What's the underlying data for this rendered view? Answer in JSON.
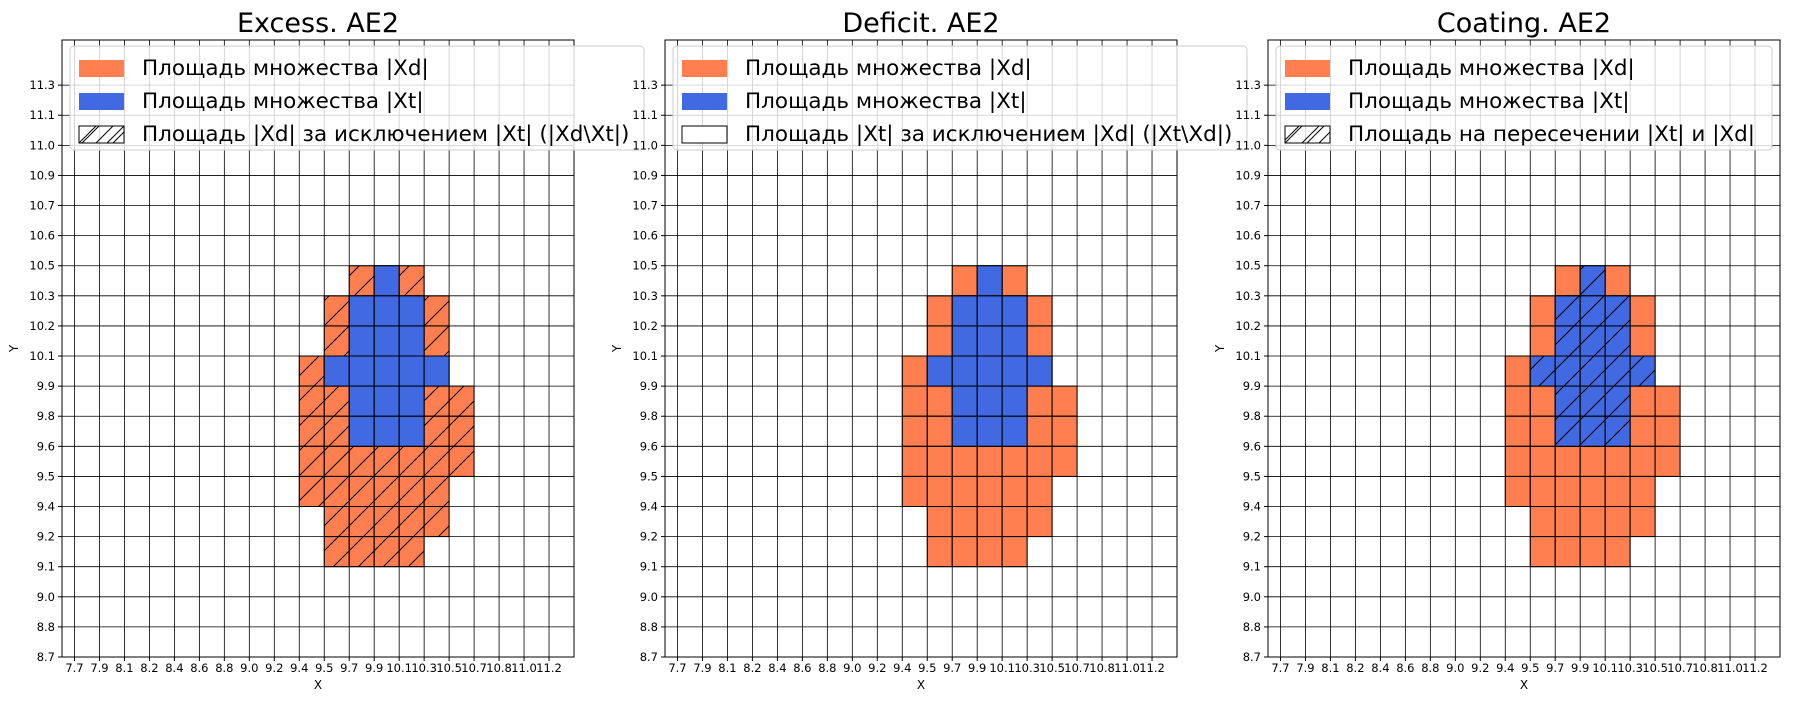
{
  "chart_data": [
    {
      "type": "heatmap",
      "title": "Excess. AE2",
      "xlabel": "X",
      "ylabel": "Y",
      "x_ticks": [
        "7.7",
        "7.9",
        "8.1",
        "8.2",
        "8.4",
        "8.6",
        "8.8",
        "9.0",
        "9.2",
        "9.4",
        "9.5",
        "9.7",
        "9.9",
        "10.1",
        "10.3",
        "10.5",
        "10.7",
        "10.8",
        "11.0",
        "11.2"
      ],
      "y_ticks": [
        "8.7",
        "8.8",
        "9.0",
        "9.1",
        "9.2",
        "9.4",
        "9.5",
        "9.6",
        "9.8",
        "9.9",
        "10.1",
        "10.2",
        "10.3",
        "10.5",
        "10.6",
        "10.7",
        "10.9",
        "11.0",
        "11.1",
        "11.3"
      ],
      "grid": true,
      "legend_position": "top",
      "legend": [
        {
          "label": "Площадь множества |Xd|",
          "swatch": "orange"
        },
        {
          "label": "Площадь множества  |Xt|",
          "swatch": "blue"
        },
        {
          "label": "Площадь |Xd| за исключением |Xt| (|Xd\\Xt|)",
          "swatch": "hatch"
        }
      ],
      "hatch_set": "xd_minus_xt"
    },
    {
      "type": "heatmap",
      "title": "Deficit. AE2",
      "xlabel": "X",
      "ylabel": "Y",
      "x_ticks": [
        "7.7",
        "7.9",
        "8.1",
        "8.2",
        "8.4",
        "8.6",
        "8.8",
        "9.0",
        "9.2",
        "9.4",
        "9.5",
        "9.7",
        "9.9",
        "10.1",
        "10.3",
        "10.5",
        "10.7",
        "10.8",
        "11.0",
        "11.2"
      ],
      "y_ticks": [
        "8.7",
        "8.8",
        "9.0",
        "9.1",
        "9.2",
        "9.4",
        "9.5",
        "9.6",
        "9.8",
        "9.9",
        "10.1",
        "10.2",
        "10.3",
        "10.5",
        "10.6",
        "10.7",
        "10.9",
        "11.0",
        "11.1",
        "11.3"
      ],
      "grid": true,
      "legend_position": "top",
      "legend": [
        {
          "label": "Площадь множества |Xd|",
          "swatch": "orange"
        },
        {
          "label": "Площадь множества  |Xt|",
          "swatch": "blue"
        },
        {
          "label": "Площадь |Xt| за исключением |Xd| (|Xt\\Xd|)",
          "swatch": "empty"
        }
      ],
      "hatch_set": "none"
    },
    {
      "type": "heatmap",
      "title": "Coating. AE2",
      "xlabel": "X",
      "ylabel": "Y",
      "x_ticks": [
        "7.7",
        "7.9",
        "8.1",
        "8.2",
        "8.4",
        "8.6",
        "8.8",
        "9.0",
        "9.2",
        "9.4",
        "9.5",
        "9.7",
        "9.9",
        "10.1",
        "10.3",
        "10.5",
        "10.7",
        "10.8",
        "11.0",
        "11.2"
      ],
      "y_ticks": [
        "8.7",
        "8.8",
        "9.0",
        "9.1",
        "9.2",
        "9.4",
        "9.5",
        "9.6",
        "9.8",
        "9.9",
        "10.1",
        "10.2",
        "10.3",
        "10.5",
        "10.6",
        "10.7",
        "10.9",
        "11.0",
        "11.1",
        "11.3"
      ],
      "grid": true,
      "legend_position": "top",
      "legend": [
        {
          "label": "Площадь множества |Xd|",
          "swatch": "orange"
        },
        {
          "label": "Площадь множества  |Xt|",
          "swatch": "blue"
        },
        {
          "label": "Площадь на пересечении |Xt| и |Xd|",
          "swatch": "hatch"
        }
      ],
      "hatch_set": "intersection"
    }
  ],
  "sets": {
    "xd_rows": [
      {
        "y": "10.3",
        "x_from": "9.7",
        "x_to": "10.1"
      },
      {
        "y": "10.2",
        "x_from": "9.5",
        "x_to": "10.3"
      },
      {
        "y": "10.1",
        "x_from": "9.5",
        "x_to": "10.3"
      },
      {
        "y": "9.9",
        "x_from": "9.4",
        "x_to": "10.3"
      },
      {
        "y": "9.8",
        "x_from": "9.4",
        "x_to": "10.5"
      },
      {
        "y": "9.6",
        "x_from": "9.4",
        "x_to": "10.5"
      },
      {
        "y": "9.5",
        "x_from": "9.4",
        "x_to": "10.5"
      },
      {
        "y": "9.4",
        "x_from": "9.4",
        "x_to": "10.3"
      },
      {
        "y": "9.2",
        "x_from": "9.5",
        "x_to": "10.3"
      },
      {
        "y": "9.1",
        "x_from": "9.5",
        "x_to": "10.1"
      }
    ],
    "xt_rows": [
      {
        "y": "10.3",
        "x_from": "9.9",
        "x_to": "9.9"
      },
      {
        "y": "10.2",
        "x_from": "9.7",
        "x_to": "10.1"
      },
      {
        "y": "10.1",
        "x_from": "9.7",
        "x_to": "10.1"
      },
      {
        "y": "9.9",
        "x_from": "9.5",
        "x_to": "10.3"
      },
      {
        "y": "9.8",
        "x_from": "9.7",
        "x_to": "10.1"
      },
      {
        "y": "9.6",
        "x_from": "9.7",
        "x_to": "10.1"
      }
    ]
  },
  "colors": {
    "xd": "#ff7f50",
    "xt": "#4169e1",
    "grid": "#000000",
    "text": "#000000",
    "legend_border": "#cccccc"
  }
}
